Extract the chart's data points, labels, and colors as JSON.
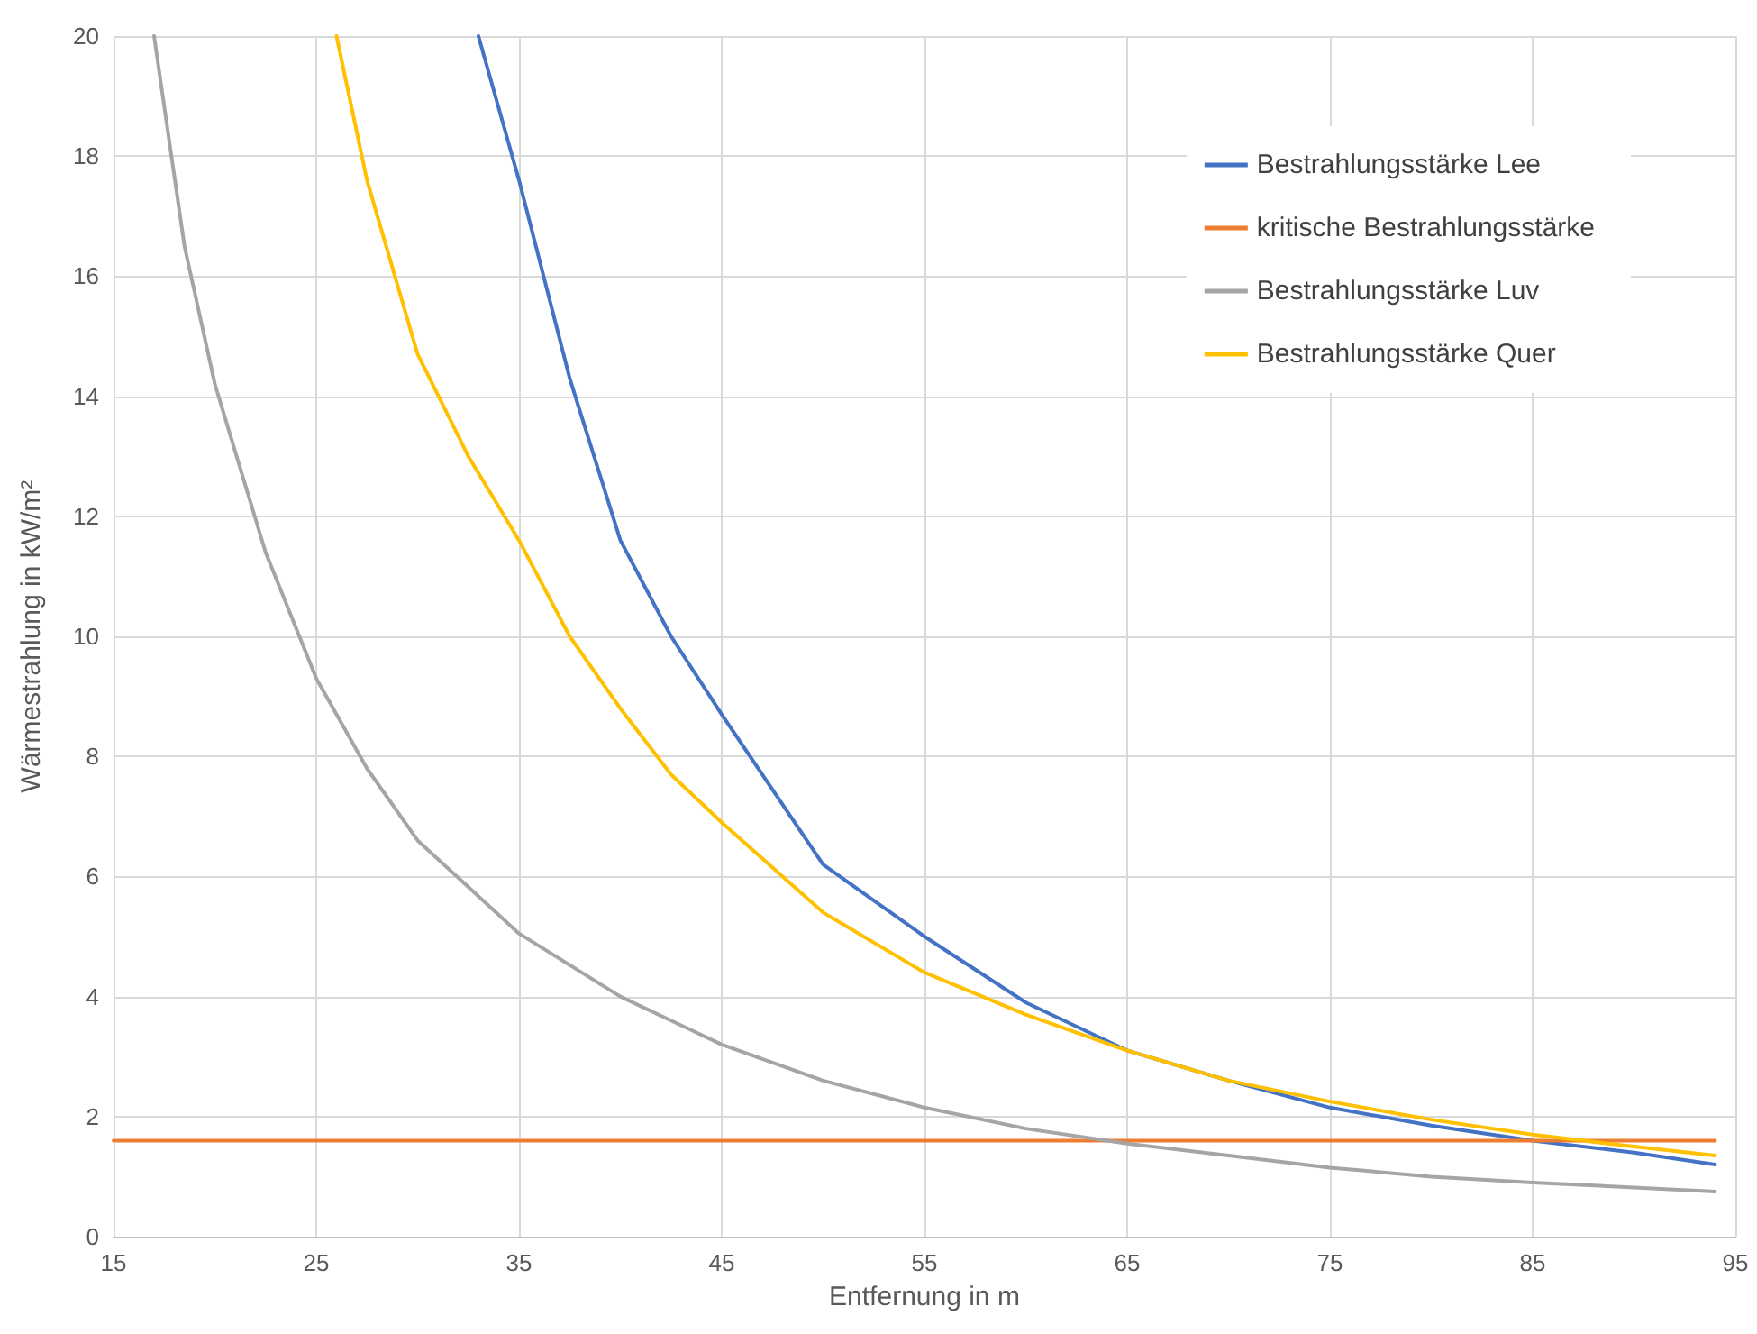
{
  "chart_data": {
    "type": "line",
    "xlabel": "Entfernung in m",
    "ylabel": "Wärmestrahlung in kW/m²",
    "xlim": [
      15,
      95
    ],
    "xticks": [
      15,
      25,
      35,
      45,
      55,
      65,
      75,
      85,
      95
    ],
    "ylim": [
      0,
      20
    ],
    "yticks": [
      0,
      2,
      4,
      6,
      8,
      10,
      12,
      14,
      16,
      18,
      20
    ],
    "grid": true,
    "legend": "top right",
    "marker": "none",
    "line_style": "solid",
    "series": [
      {
        "name": "Bestrahlungsstärke Lee",
        "color": "#4472c4",
        "x": [
          33,
          35,
          37.5,
          40,
          42.5,
          45,
          50,
          55,
          60,
          65,
          70,
          75,
          80,
          85,
          90,
          94
        ],
        "values": [
          20,
          17.6,
          14.3,
          11.6,
          10,
          8.7,
          6.2,
          5.0,
          3.9,
          3.1,
          2.6,
          2.15,
          1.85,
          1.6,
          1.4,
          1.2
        ]
      },
      {
        "name": "kritische Bestrahlungsstärke",
        "color": "#ed7d31",
        "x": [
          15,
          94
        ],
        "values": [
          1.6,
          1.6
        ]
      },
      {
        "name": "Bestrahlungsstärke Luv",
        "color": "#a5a5a5",
        "x": [
          17,
          18.5,
          20,
          22.5,
          25,
          27.5,
          30,
          35,
          40,
          45,
          50,
          55,
          60,
          65,
          70,
          75,
          80,
          85,
          90,
          94
        ],
        "values": [
          20,
          16.5,
          14.2,
          11.4,
          9.3,
          7.8,
          6.6,
          5.05,
          4.0,
          3.2,
          2.6,
          2.15,
          1.8,
          1.55,
          1.35,
          1.15,
          1.0,
          0.9,
          0.82,
          0.75
        ]
      },
      {
        "name": "Bestrahlungsstärke Quer",
        "color": "#ffc000",
        "x": [
          26,
          27.5,
          30,
          32.5,
          35,
          37.5,
          40,
          42.5,
          45,
          50,
          55,
          60,
          65,
          70,
          75,
          80,
          85,
          90,
          94
        ],
        "values": [
          20,
          17.6,
          14.7,
          13.0,
          11.6,
          10.0,
          8.8,
          7.7,
          6.9,
          5.4,
          4.4,
          3.7,
          3.1,
          2.6,
          2.25,
          1.95,
          1.7,
          1.5,
          1.35
        ]
      }
    ]
  }
}
